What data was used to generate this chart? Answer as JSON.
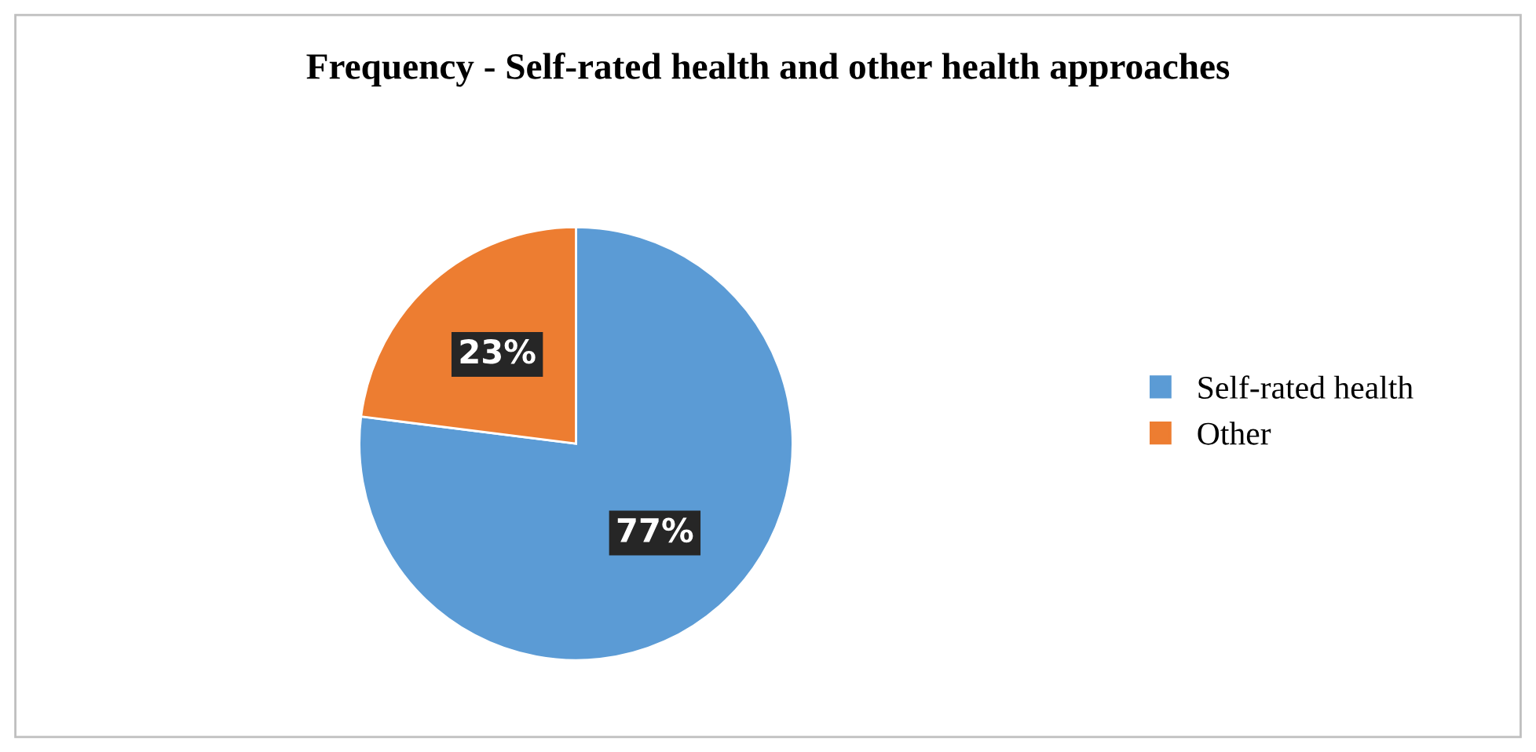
{
  "chart_data": {
    "type": "pie",
    "title": "Frequency - Self-rated health and other health approaches",
    "categories": [
      "Self-rated health",
      "Other"
    ],
    "values": [
      77,
      23
    ],
    "colors": [
      "#5b9bd5",
      "#ed7d31"
    ],
    "value_labels": [
      "77%",
      "23%"
    ],
    "legend": "right"
  }
}
